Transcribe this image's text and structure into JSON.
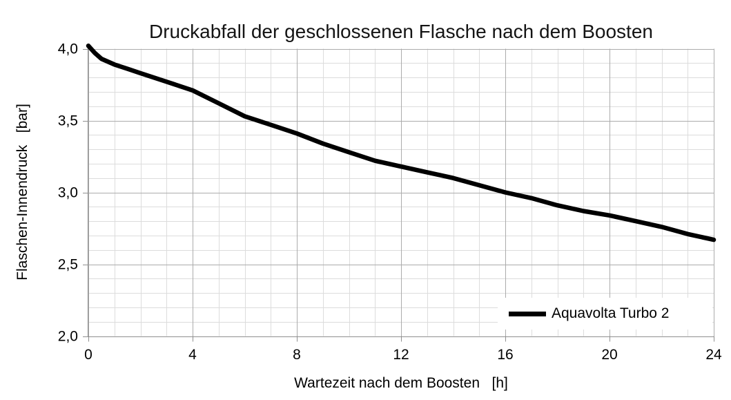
{
  "chart_data": {
    "type": "line",
    "title": "Druckabfall der geschlossenen Flasche nach dem Boosten",
    "xlabel": "Wartezeit nach dem Boosten   [h]",
    "ylabel": "Flaschen-Innendruck   [bar]",
    "xlim": [
      0,
      24
    ],
    "ylim": [
      2.0,
      4.0
    ],
    "x_major_tick_values": [
      0,
      4,
      8,
      12,
      16,
      20,
      24
    ],
    "x_tick_labels": [
      "0",
      "4",
      "8",
      "12",
      "16",
      "20",
      "24"
    ],
    "x_minor_step": 1,
    "y_major_tick_values": [
      2.0,
      2.5,
      3.0,
      3.5,
      4.0
    ],
    "y_tick_labels": [
      "2,0",
      "2,5",
      "3,0",
      "3,5",
      "4,0"
    ],
    "y_minor_step": 0.1,
    "grid": "major and minor, on",
    "legend": {
      "position": "bottom-right",
      "entries": [
        {
          "label": "Aquavolta Turbo 2",
          "color": "#000000"
        }
      ]
    },
    "series": [
      {
        "name": "Aquavolta Turbo 2",
        "color": "#000000",
        "x": [
          0,
          0.25,
          0.5,
          1,
          1.5,
          2,
          3,
          4,
          5,
          6,
          7,
          8,
          9,
          10,
          11,
          12,
          13,
          14,
          15,
          16,
          17,
          18,
          19,
          20,
          21,
          22,
          23,
          24
        ],
        "y": [
          4.02,
          3.97,
          3.93,
          3.89,
          3.86,
          3.83,
          3.77,
          3.71,
          3.62,
          3.53,
          3.47,
          3.41,
          3.34,
          3.28,
          3.22,
          3.18,
          3.14,
          3.1,
          3.05,
          3.0,
          2.96,
          2.91,
          2.87,
          2.84,
          2.8,
          2.76,
          2.71,
          2.67
        ]
      }
    ],
    "colors": {
      "series": "#000000",
      "axis": "#8f8f8f",
      "major_grid": "#ababab",
      "minor_grid": "#dcdcdc",
      "text": "#000000",
      "legend_bg": "#ffffff"
    }
  }
}
